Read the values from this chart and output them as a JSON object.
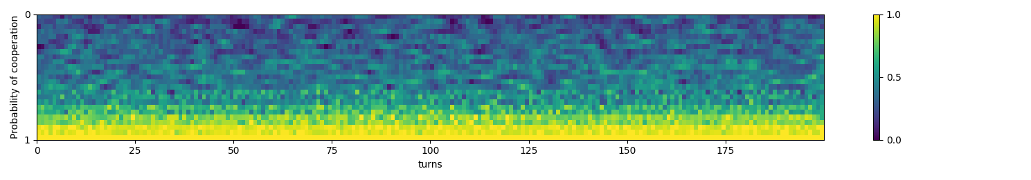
{
  "xlabel": "turns",
  "ylabel": "Probability of cooperation",
  "cmap": "viridis",
  "vmin": 0.0,
  "vmax": 1.0,
  "colorbar_ticks": [
    0.0,
    0.5,
    1.0
  ],
  "colorbar_labels": [
    "0.0",
    "0.5",
    "1.0"
  ],
  "xticks": [
    0,
    25,
    50,
    75,
    100,
    125,
    150,
    175
  ],
  "ytick_positions": [
    0.0,
    1.0
  ],
  "ytick_labels": [
    "0",
    "1"
  ],
  "n_rows": 25,
  "n_cols": 200,
  "x_max": 200,
  "figsize": [
    14.89,
    2.61
  ],
  "dpi": 100,
  "seed": 77
}
